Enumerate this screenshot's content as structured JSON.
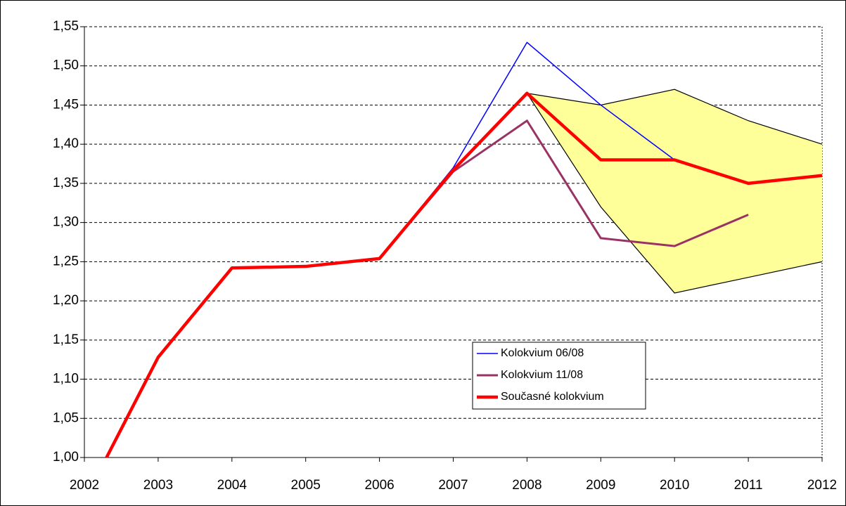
{
  "chart_data": {
    "type": "line",
    "x": [
      2002.3,
      2003,
      2004,
      2005,
      2006,
      2007,
      2008,
      2009,
      2010,
      2011,
      2012
    ],
    "xlim": [
      2002,
      2012
    ],
    "xticks": [
      2002,
      2003,
      2004,
      2005,
      2006,
      2007,
      2008,
      2009,
      2010,
      2011,
      2012
    ],
    "ylim": [
      1.0,
      1.55
    ],
    "yticks": [
      {
        "value": 1.0,
        "label": "1,00"
      },
      {
        "value": 1.05,
        "label": "1,05"
      },
      {
        "value": 1.1,
        "label": "1,10"
      },
      {
        "value": 1.15,
        "label": "1,15"
      },
      {
        "value": 1.2,
        "label": "1,20"
      },
      {
        "value": 1.25,
        "label": "1,25"
      },
      {
        "value": 1.3,
        "label": "1,30"
      },
      {
        "value": 1.35,
        "label": "1,35"
      },
      {
        "value": 1.4,
        "label": "1,40"
      },
      {
        "value": 1.45,
        "label": "1,45"
      },
      {
        "value": 1.5,
        "label": "1,50"
      },
      {
        "value": 1.55,
        "label": "1,55"
      }
    ],
    "grid": true,
    "band": {
      "color": "#ffff99",
      "upper": [
        null,
        null,
        null,
        null,
        null,
        null,
        1.465,
        1.45,
        1.47,
        1.43,
        1.4
      ],
      "lower": [
        null,
        null,
        null,
        null,
        null,
        null,
        1.465,
        1.32,
        1.21,
        1.23,
        1.25
      ]
    },
    "series": [
      {
        "name": "Kolokvium 06/08",
        "color": "#0000ff",
        "width": 1.5,
        "values": [
          1.0,
          1.128,
          1.242,
          1.244,
          1.254,
          1.37,
          1.53,
          1.45,
          1.38,
          1.35,
          null
        ]
      },
      {
        "name": "Kolokvium 11/08",
        "color": "#993366",
        "width": 3,
        "values": [
          1.0,
          1.128,
          1.242,
          1.244,
          1.254,
          1.365,
          1.43,
          1.28,
          1.27,
          1.31,
          null
        ]
      },
      {
        "name": "Současné kolokvium",
        "color": "#ff0000",
        "width": 4.5,
        "values": [
          1.0,
          1.128,
          1.242,
          1.244,
          1.254,
          1.367,
          1.465,
          1.38,
          1.38,
          1.35,
          1.36
        ]
      }
    ]
  }
}
